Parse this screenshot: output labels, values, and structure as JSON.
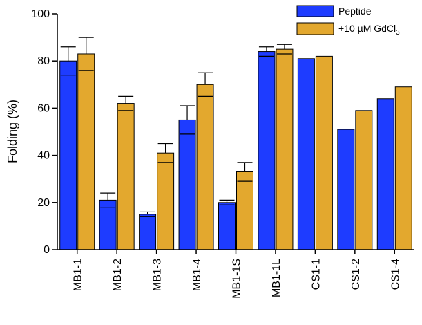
{
  "chart_data": {
    "type": "bar",
    "ylabel": "Folding (%)",
    "ylim": [
      0,
      100
    ],
    "yticks": [
      0,
      20,
      40,
      60,
      80,
      100
    ],
    "categories": [
      "MB1-1",
      "MB1-2",
      "MB1-3",
      "MB1-4",
      "MB1-1S",
      "MB1-1L",
      "CS1-1",
      "CS1-2",
      "CS1-4"
    ],
    "series": [
      {
        "name": "Peptide",
        "color": "#1e3cff",
        "values": [
          80,
          21,
          15,
          55,
          20,
          84,
          81,
          51,
          64
        ],
        "errors": [
          6,
          3,
          1,
          6,
          1,
          2,
          null,
          null,
          null
        ]
      },
      {
        "name": "+10 µM GdCl3",
        "name_main": "+10 µM GdCl",
        "name_sub": "3",
        "color": "#e3a82e",
        "values": [
          83,
          62,
          41,
          70,
          33,
          85,
          82,
          59,
          69
        ],
        "errors": [
          7,
          3,
          4,
          5,
          4,
          2,
          null,
          null,
          null
        ]
      }
    ],
    "grid": false,
    "legend": "top-right"
  }
}
